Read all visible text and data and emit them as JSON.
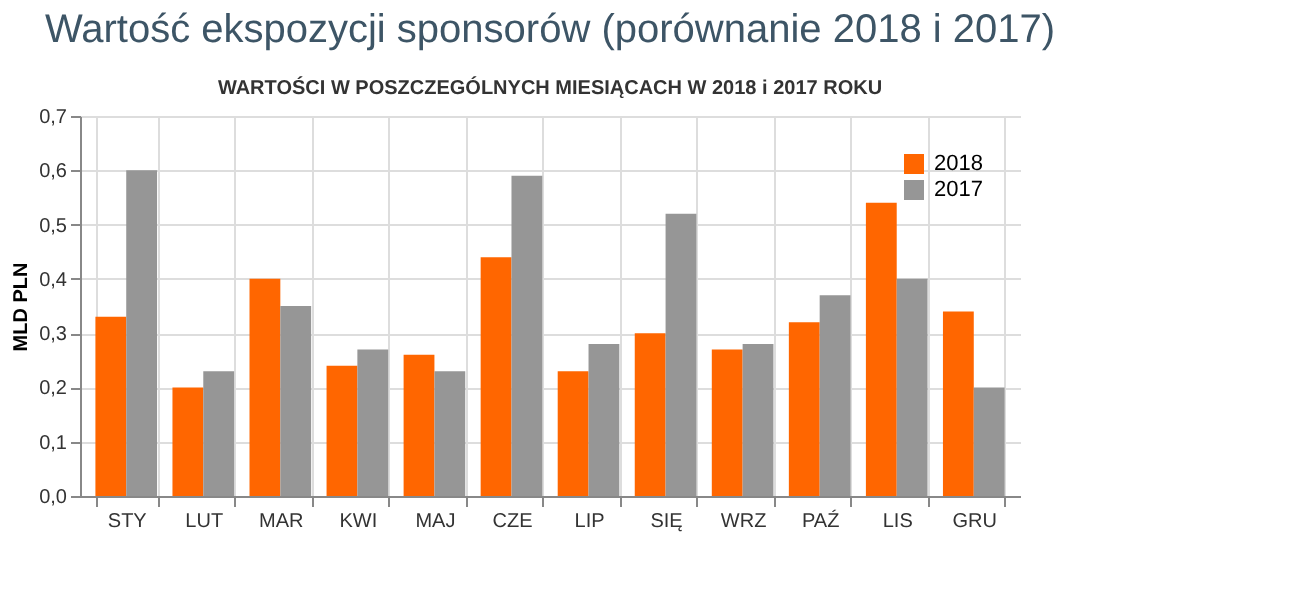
{
  "chart_data": {
    "type": "bar",
    "title": "Wartość ekspozycji sponsorów (porównanie 2018 i 2017)",
    "subtitle": "WARTOŚCI W  POSZCZEGÓLNYCH MIESIĄCACH W 2018 i 2017 ROKU",
    "ylabel": "MLD PLN",
    "categories": [
      "STY",
      "LUT",
      "MAR",
      "KWI",
      "MAJ",
      "CZE",
      "LIP",
      "SIĘ",
      "WRZ",
      "PAŹ",
      "LIS",
      "GRU"
    ],
    "series": [
      {
        "name": "2018",
        "color": "#ff6600",
        "values": [
          0.33,
          0.2,
          0.4,
          0.24,
          0.26,
          0.44,
          0.23,
          0.3,
          0.27,
          0.32,
          0.54,
          0.34
        ]
      },
      {
        "name": "2017",
        "color": "#969696",
        "values": [
          0.6,
          0.23,
          0.35,
          0.27,
          0.23,
          0.59,
          0.28,
          0.52,
          0.28,
          0.37,
          0.4,
          0.2
        ]
      }
    ],
    "ylim": [
      0,
      0.7
    ],
    "yticks": [
      {
        "value": 0,
        "label": "0,0"
      },
      {
        "value": 0.1,
        "label": "0,1"
      },
      {
        "value": 0.2,
        "label": "0,2"
      },
      {
        "value": 0.3,
        "label": "0,3"
      },
      {
        "value": 0.4,
        "label": "0,4"
      },
      {
        "value": 0.5,
        "label": "0,5"
      },
      {
        "value": 0.6,
        "label": "0,6"
      },
      {
        "value": 0.7,
        "label": "0,7"
      }
    ],
    "grid": true,
    "legend": "top right"
  }
}
